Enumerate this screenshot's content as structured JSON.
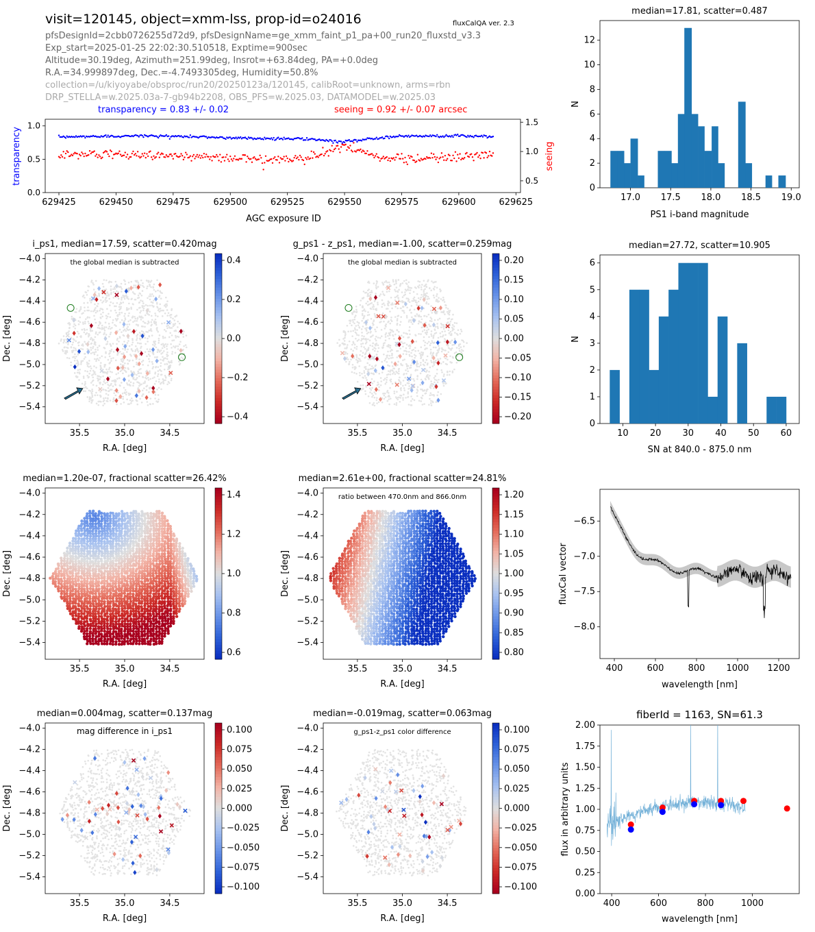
{
  "header": {
    "title": "visit=120145, object=xmm-lss, prop-id=o24016",
    "version": "fluxCalQA ver. 2.3",
    "lines": [
      "pfsDesignId=2cbb0726255d72d9, pfsDesignName=ge_xmm_faint_p1_pa+00_run20_fluxstd_v3.3",
      "Exp_start=2025-01-25 22:02:30.510518, Exptime=900sec",
      "Altitude=30.19deg, Azimuth=251.99deg, Insrot=+63.84deg, PA=+0.0deg",
      "R.A.=34.999897deg, Dec.=-4.7493305deg, Humidity=50.8%",
      "collection=/u/kiyoyabe/obsproc/run20/20250123a/120145, calibRoot=unknown, arms=rbn",
      "DRP_STELLA=w.2025.03a-7-gb94b2208, OBS_PFS=w.2025.03, DATAMODEL=w.2025.03"
    ],
    "transparency_text": "transparency = 0.83 +/- 0.02",
    "seeing_text": "seeing = 0.92 +/- 0.07 arcsec"
  },
  "colors": {
    "blue": "#0000ff",
    "red": "#ff0000",
    "hist": "#1f77b4",
    "spec_light": "#74b1d8"
  },
  "chart_data": [
    {
      "id": "agc",
      "type": "scatter",
      "xlabel": "AGC exposure ID",
      "ylabel": "transparency",
      "y2label": "seeing",
      "xticks": [
        "629425",
        "629450",
        "629475",
        "629500",
        "629525",
        "629550",
        "629575",
        "629600",
        "629625"
      ],
      "yticks": [
        "0.0",
        "0.5",
        "1.0"
      ],
      "y2ticks": [
        "0.5",
        "1.0",
        "1.5"
      ],
      "xlim": [
        629419,
        629627
      ],
      "ylim": [
        0,
        1.1
      ],
      "y2lim": [
        0.3,
        1.55
      ],
      "x_range": [
        629425,
        629615
      ],
      "series": [
        {
          "name": "transparency",
          "color": "#0000ff",
          "axis": "left",
          "mean": 0.83,
          "spread": 0.02
        },
        {
          "name": "seeing",
          "color": "#ff0000",
          "axis": "right",
          "mean": 0.92,
          "spread": 0.07
        }
      ]
    },
    {
      "id": "hist_mag",
      "type": "bar",
      "title": "median=17.81, scatter=0.487",
      "xlabel": "PS1 i-band magnitude",
      "ylabel": "N",
      "xlim": [
        16.62,
        19.1
      ],
      "ylim": [
        0,
        13.6
      ],
      "xticks": [
        "17.0",
        "17.5",
        "18.0",
        "18.5",
        "19.0"
      ],
      "yticks": [
        "0",
        "2",
        "4",
        "6",
        "8",
        "10",
        "12"
      ],
      "edges": [
        16.75,
        16.84,
        16.92,
        17.0,
        17.09,
        17.17,
        17.26,
        17.34,
        17.42,
        17.51,
        17.59,
        17.67,
        17.76,
        17.84,
        17.92,
        18.01,
        18.09,
        18.17,
        18.26,
        18.34,
        18.43,
        18.51,
        18.59,
        18.68,
        18.76,
        18.84,
        18.93
      ],
      "values": [
        3,
        3,
        2,
        4,
        1,
        0,
        0,
        3,
        3,
        2,
        6,
        13,
        6,
        5,
        3,
        5,
        2,
        0,
        0,
        7,
        2,
        0,
        0,
        1,
        0,
        1
      ]
    },
    {
      "id": "hist_sn",
      "type": "bar",
      "title": "median=27.72, scatter=10.905",
      "xlabel": "SN at 840.0 - 875.0 nm",
      "ylabel": "N",
      "xlim": [
        3.0,
        64.0
      ],
      "ylim": [
        0,
        6.3
      ],
      "xticks": [
        "10",
        "20",
        "30",
        "40",
        "50",
        "60"
      ],
      "yticks": [
        "0",
        "1",
        "2",
        "3",
        "4",
        "5",
        "6"
      ],
      "edges": [
        6.0,
        9.0,
        12.0,
        15.0,
        18.0,
        21.0,
        24.0,
        27.0,
        30.0,
        33.0,
        36.0,
        39.0,
        42.0,
        45.0,
        48.0,
        51.0,
        54.0,
        57.0,
        60.0
      ],
      "values": [
        2,
        0,
        5,
        5,
        2,
        4,
        5,
        6,
        6,
        6,
        1,
        4,
        0,
        3,
        0,
        0,
        1,
        1
      ]
    },
    {
      "id": "map_i",
      "type": "scatter",
      "title": "i_ps1, median=17.59, scatter=0.420mag",
      "annotation": "the global median is subtracted",
      "xlabel": "R.A. [deg]",
      "ylabel": "Dec. [deg]",
      "colorbar_ticks": [
        "0.4",
        "0.2",
        "0.0",
        "−0.2",
        "−0.4"
      ],
      "clim": [
        -0.5,
        0.5
      ]
    },
    {
      "id": "map_gz",
      "type": "scatter",
      "title": "g_ps1 - z_ps1, median=-1.00, scatter=0.259mag",
      "annotation": "the global median is subtracted",
      "xlabel": "R.A. [deg]",
      "ylabel": "Dec. [deg]",
      "colorbar_ticks": [
        "0.20",
        "0.15",
        "0.10",
        "0.05",
        "0.00",
        "−0.05",
        "−0.10",
        "−0.15",
        "−0.20"
      ],
      "clim": [
        -0.2,
        0.2
      ]
    },
    {
      "id": "map_flux",
      "type": "heatmap",
      "title": "median=1.20e-07, fractional scatter=26.42%",
      "xlabel": "R.A. [deg]",
      "ylabel": "Dec. [deg]",
      "colorbar_ticks": [
        "1.4",
        "1.2",
        "1.0",
        "0.8",
        "0.6"
      ],
      "clim": [
        0.5,
        1.5
      ]
    },
    {
      "id": "map_ratio",
      "type": "heatmap",
      "title": "median=2.61e+00, fractional scatter=24.81%",
      "annotation": "ratio between 470.0nm and 866.0nm",
      "xlabel": "R.A. [deg]",
      "ylabel": "Dec. [deg]",
      "colorbar_ticks": [
        "1.20",
        "1.15",
        "1.10",
        "1.05",
        "1.00",
        "0.95",
        "0.90",
        "0.85",
        "0.80"
      ],
      "clim": [
        0.8,
        1.2
      ]
    },
    {
      "id": "fluxcal_vec",
      "type": "line",
      "xlabel": "wavelength [nm]",
      "ylabel": "fluxCal vector",
      "xlim": [
        330,
        1300
      ],
      "ylim": [
        -8.45,
        -6.05
      ],
      "xticks": [
        "400",
        "600",
        "800",
        "1000",
        "1200"
      ],
      "yticks": [
        "−6.5",
        "−7.0",
        "−7.5",
        "−8.0"
      ]
    },
    {
      "id": "map_dmag",
      "type": "scatter",
      "title": "median=0.004mag, scatter=0.137mag",
      "annotation": "mag difference in i_ps1",
      "xlabel": "R.A. [deg]",
      "ylabel": "Dec. [deg]",
      "colorbar_ticks": [
        "0.100",
        "0.075",
        "0.050",
        "0.025",
        "0.000",
        "−0.025",
        "−0.050",
        "−0.075",
        "−0.100"
      ],
      "clim": [
        -0.1,
        0.1
      ]
    },
    {
      "id": "map_dcolor",
      "type": "scatter",
      "title": "median=-0.019mag, scatter=0.063mag",
      "annotation": "g_ps1-z_ps1 color difference",
      "xlabel": "R.A. [deg]",
      "ylabel": "Dec. [deg]",
      "colorbar_ticks": [
        "0.100",
        "0.075",
        "0.050",
        "0.025",
        "0.000",
        "−0.025",
        "−0.050",
        "−0.075",
        "−0.100"
      ],
      "clim": [
        -0.1,
        0.1
      ]
    },
    {
      "id": "fiber_spec",
      "type": "line",
      "title": "fiberId = 1163, SN=61.3",
      "xlabel": "wavelength [nm]",
      "ylabel": "flux in arbitrary units",
      "xlim": [
        350,
        1200
      ],
      "ylim": [
        0,
        2.0
      ],
      "xticks": [
        "400",
        "600",
        "800",
        "1000"
      ],
      "yticks": [
        "0.00",
        "0.25",
        "0.50",
        "0.75",
        "1.00",
        "1.25",
        "1.50",
        "1.75",
        "2.00"
      ],
      "points_red": [
        [
          482,
          0.82
        ],
        [
          617,
          1.02
        ],
        [
          752,
          1.1
        ],
        [
          866,
          1.1
        ],
        [
          962,
          1.1
        ],
        [
          1148,
          1.01
        ]
      ],
      "points_blue": [
        [
          482,
          0.76
        ],
        [
          617,
          0.97
        ],
        [
          752,
          1.06
        ],
        [
          866,
          1.05
        ]
      ]
    }
  ],
  "map_axes": {
    "xticks": [
      "35.5",
      "35.0",
      "34.5"
    ],
    "yticks": [
      "−4.0",
      "−4.2",
      "−4.4",
      "−4.6",
      "−4.8",
      "−5.0",
      "−5.2",
      "−5.4"
    ]
  }
}
